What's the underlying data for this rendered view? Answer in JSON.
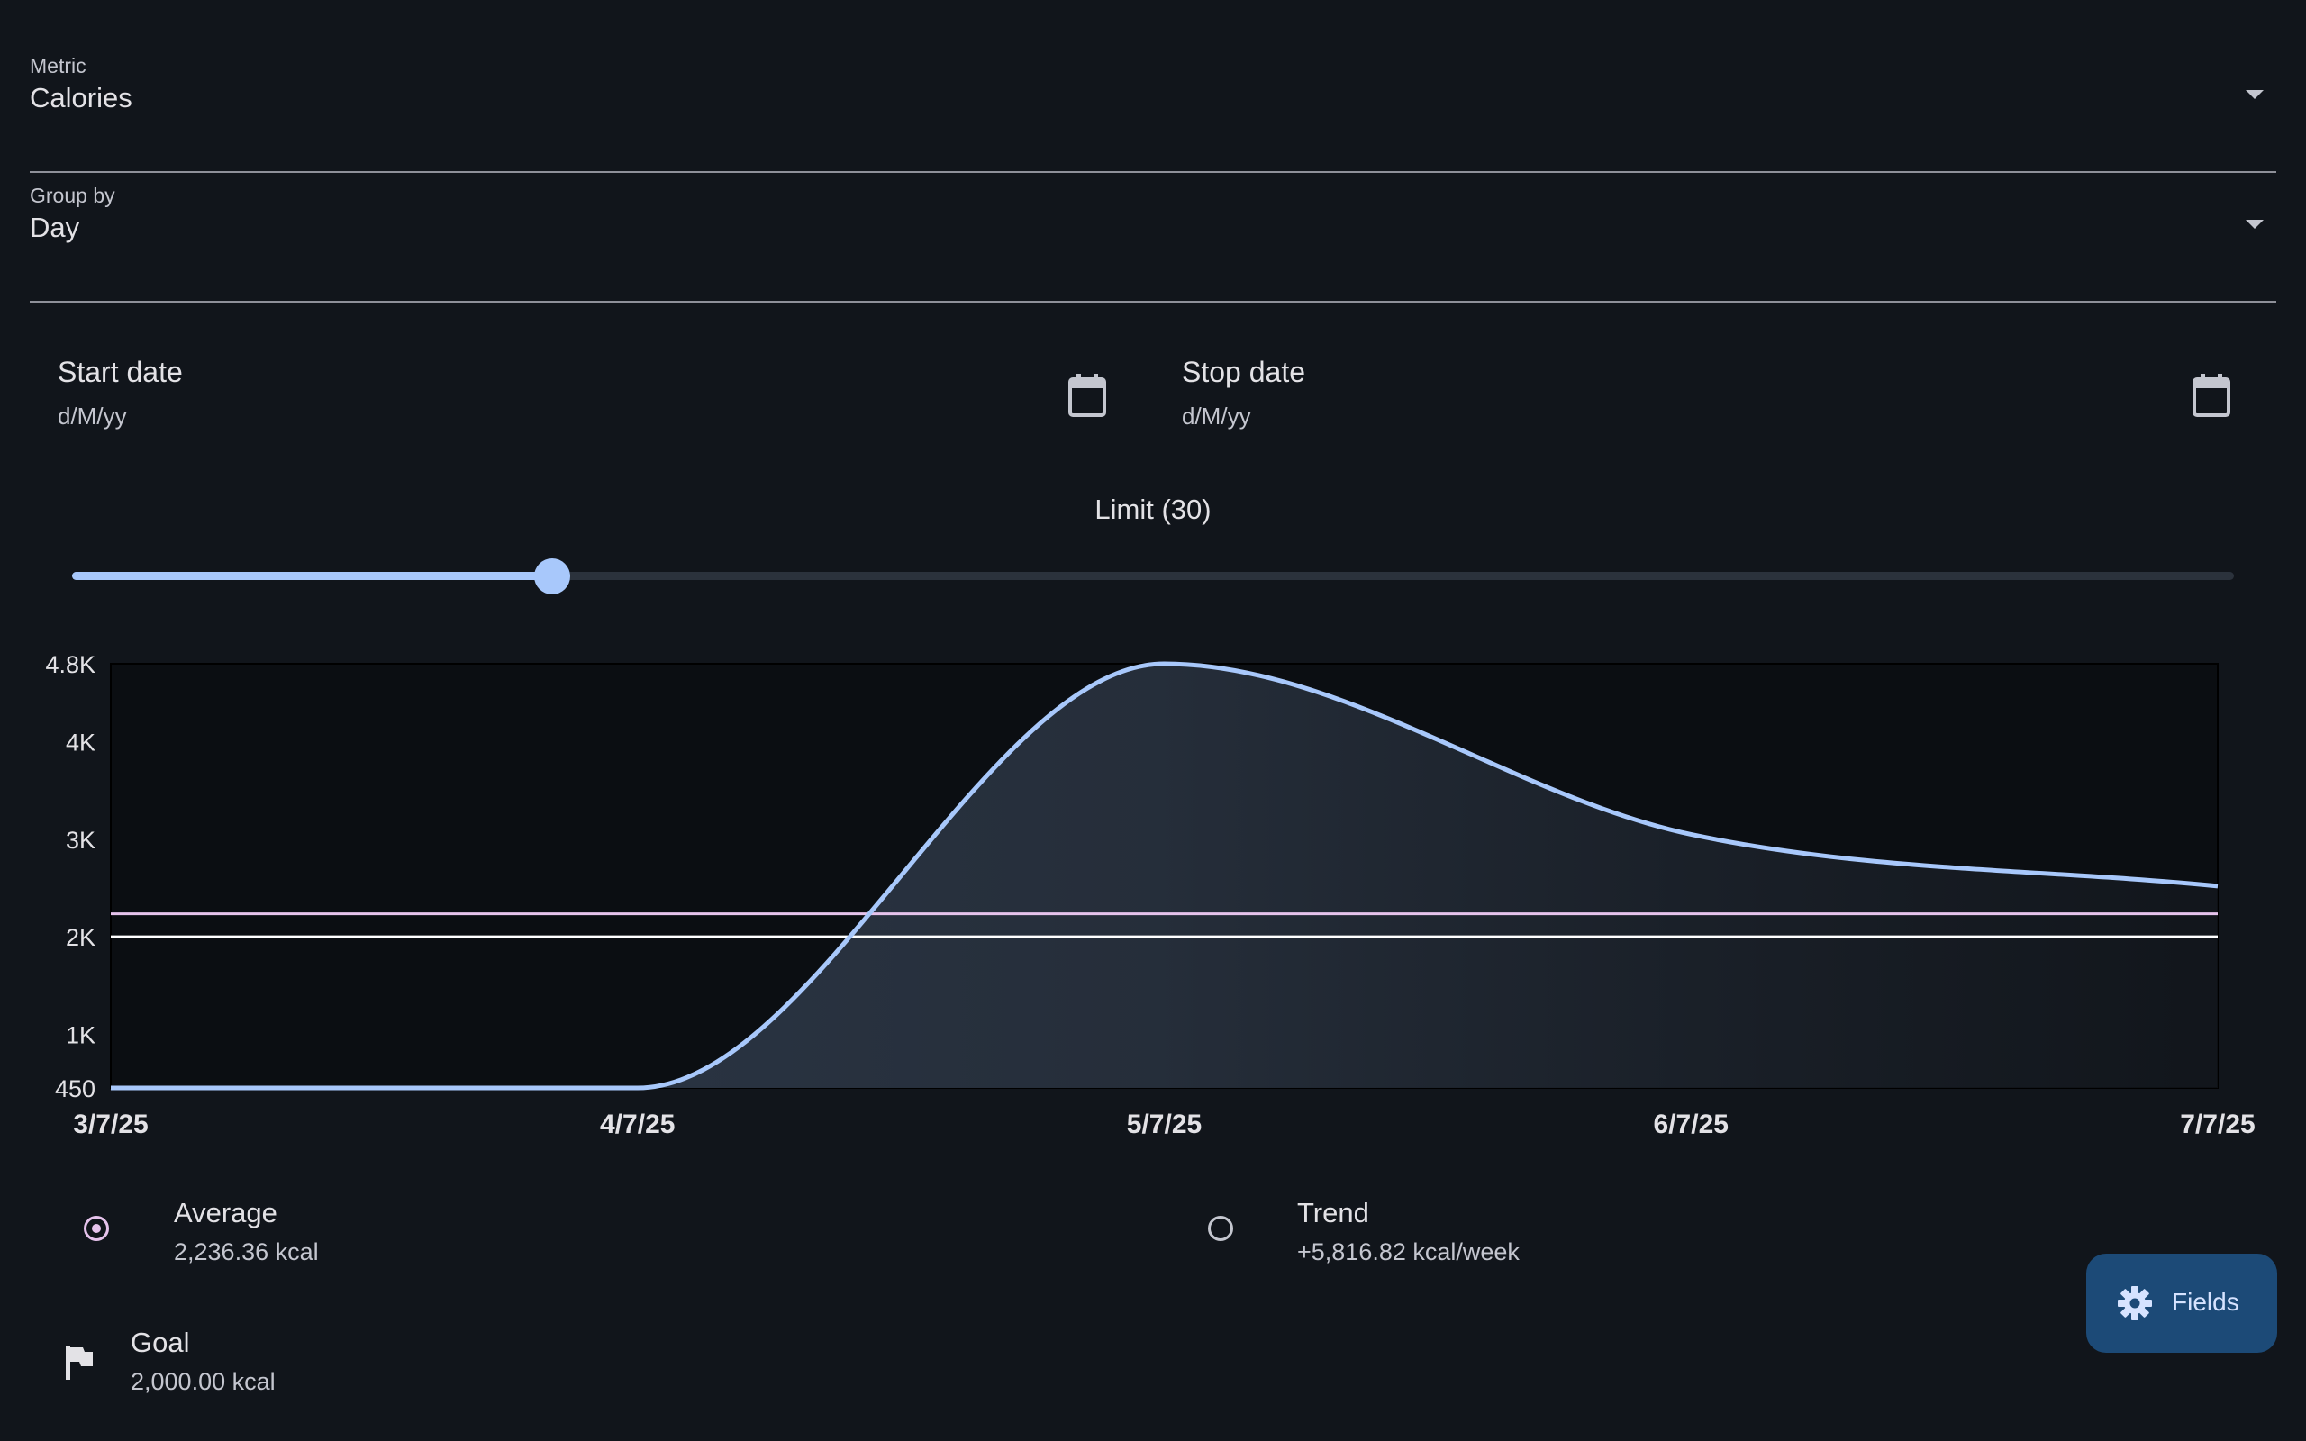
{
  "metric": {
    "label": "Metric",
    "value": "Calories"
  },
  "group_by": {
    "label": "Group by",
    "value": "Day"
  },
  "start_date": {
    "label": "Start date",
    "placeholder": "d/M/yy"
  },
  "stop_date": {
    "label": "Stop date",
    "placeholder": "d/M/yy"
  },
  "limit": {
    "label": "Limit (30)",
    "value": 30,
    "fraction": 0.222
  },
  "stats": {
    "average": {
      "title": "Average",
      "value": "2,236.36 kcal",
      "selected": true
    },
    "trend": {
      "title": "Trend",
      "value": "+5,816.82 kcal/week",
      "selected": false
    },
    "goal": {
      "title": "Goal",
      "value": "2,000.00 kcal"
    }
  },
  "fab": {
    "label": "Fields",
    "icon": "gear-icon"
  },
  "colors": {
    "background": "#11151b",
    "line": "#a8c8fb",
    "average_line": "#e6c3ec",
    "goal_line": "#ffffff",
    "fab": "#1c4a77"
  },
  "chart_data": {
    "type": "area",
    "x_ticks": [
      "3/7/25",
      "4/7/25",
      "5/7/25",
      "6/7/25",
      "7/7/25"
    ],
    "y_ticks": [
      "450",
      "1K",
      "2K",
      "3K",
      "4K",
      "4.8K"
    ],
    "ylim": [
      450,
      4800
    ],
    "xlim": [
      "2025-07-03",
      "2025-07-07"
    ],
    "x": [
      "2025-07-03",
      "2025-07-04",
      "2025-07-05",
      "2025-07-06",
      "2025-07-07"
    ],
    "values": [
      450,
      450,
      4800,
      3050,
      2520
    ],
    "reference_lines": [
      {
        "name": "Average",
        "value": 2236.36
      },
      {
        "name": "Goal",
        "value": 2000
      }
    ],
    "grid": false
  }
}
